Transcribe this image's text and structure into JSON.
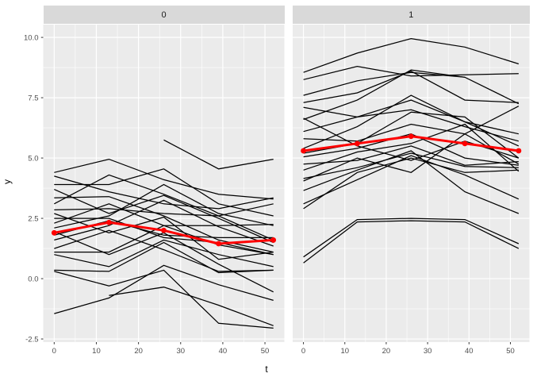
{
  "chart_data": {
    "type": "line",
    "title": "",
    "xlabel": "t",
    "ylabel": "y",
    "x": [
      0,
      13,
      26,
      39,
      52
    ],
    "x_ticks": [
      0,
      10,
      20,
      30,
      40,
      50
    ],
    "x_tick_labels": [
      "0",
      "10",
      "20",
      "30",
      "40",
      "50"
    ],
    "y_ticks": [
      10.0,
      7.5,
      5.0,
      2.5,
      0.0,
      -2.5
    ],
    "y_tick_labels": [
      "10.0",
      "7.5",
      "5.0",
      "2.5",
      "0.0",
      "-2.5"
    ],
    "x_minor_ticks": [
      5,
      15,
      25,
      35,
      45
    ],
    "y_minor_ticks": [
      8.75,
      6.25,
      3.75,
      1.25,
      -1.25
    ],
    "xlim": [
      -2.6,
      54.6
    ],
    "ylim": [
      -2.63,
      10.53
    ],
    "grid": true,
    "legend": "none",
    "facets": [
      {
        "label": "0",
        "mean": [
          1.9,
          2.33,
          2.0,
          1.45,
          1.6
        ],
        "series": [
          [
            4.4,
            4.95,
            4.1,
            3.5,
            3.3
          ],
          [
            4.25,
            3.6,
            3.1,
            2.9,
            3.35
          ],
          [
            3.9,
            3.9,
            4.55,
            3.1,
            2.6
          ],
          [
            3.7,
            2.7,
            3.45,
            2.5,
            1.5
          ],
          [
            3.35,
            3.4,
            2.6,
            1.6,
            1.1
          ],
          [
            3.1,
            4.3,
            3.5,
            2.6,
            3.1
          ],
          [
            2.85,
            2.9,
            2.7,
            2.6,
            1.6
          ],
          [
            2.7,
            1.9,
            2.55,
            0.8,
            1.1
          ],
          [
            2.5,
            2.5,
            1.7,
            1.5,
            1.0
          ],
          [
            2.3,
            3.1,
            2.2,
            2.2,
            2.25
          ],
          [
            2.1,
            2.6,
            3.9,
            2.7,
            2.2
          ],
          [
            1.95,
            1.0,
            1.9,
            0.6,
            -0.55
          ],
          [
            1.8,
            2.4,
            1.8,
            1.7,
            1.7
          ],
          [
            1.6,
            2.2,
            3.25,
            2.15,
            1.35
          ],
          [
            1.25,
            2.0,
            1.2,
            0.3,
            0.35
          ],
          [
            1.1,
            1.1,
            2.2,
            1.4,
            1.0
          ],
          [
            1.0,
            0.5,
            1.6,
            1.0,
            0.5
          ],
          [
            0.35,
            0.3,
            1.5,
            0.25,
            0.35
          ],
          [
            0.3,
            -0.3,
            0.35,
            -1.85,
            -2.05
          ],
          [
            -1.45,
            -0.8,
            0.55,
            -0.25,
            -0.9
          ],
          [
            null,
            -0.7,
            -0.35,
            -1.1,
            -1.95
          ],
          [
            null,
            null,
            5.75,
            4.55,
            4.95
          ]
        ]
      },
      {
        "label": "1",
        "mean": [
          5.3,
          5.6,
          5.9,
          5.6,
          5.3
        ],
        "series": [
          [
            8.55,
            9.35,
            9.95,
            9.6,
            8.9
          ],
          [
            8.25,
            8.8,
            8.4,
            8.45,
            8.5
          ],
          [
            7.6,
            8.2,
            8.55,
            8.35,
            null
          ],
          [
            7.3,
            7.7,
            8.6,
            7.4,
            7.3
          ],
          [
            7.1,
            6.7,
            7.4,
            6.5,
            6.0
          ],
          [
            6.65,
            5.5,
            4.9,
            5.7,
            5.0
          ],
          [
            6.6,
            7.4,
            8.65,
            8.35,
            7.25
          ],
          [
            6.1,
            6.7,
            7.0,
            6.3,
            5.7
          ],
          [
            5.8,
            5.7,
            6.4,
            6.0,
            7.15
          ],
          [
            5.4,
            6.3,
            7.6,
            6.5,
            5.5
          ],
          [
            5.2,
            5.6,
            6.9,
            6.7,
            5.0
          ],
          [
            5.05,
            5.4,
            6.0,
            5.0,
            4.7
          ],
          [
            4.75,
            4.9,
            5.5,
            4.7,
            4.85
          ],
          [
            4.5,
            5.25,
            5.6,
            6.4,
            4.45
          ],
          [
            4.15,
            4.6,
            5.2,
            4.65,
            4.6
          ],
          [
            4.05,
            5.0,
            4.4,
            6.0,
            4.75
          ],
          [
            3.65,
            4.5,
            5.3,
            3.6,
            2.7
          ],
          [
            3.1,
            4.1,
            5.1,
            4.3,
            3.3
          ],
          [
            2.9,
            4.4,
            5.0,
            4.4,
            4.5
          ],
          [
            0.9,
            2.45,
            2.5,
            2.45,
            1.45
          ],
          [
            0.65,
            2.35,
            2.4,
            2.35,
            1.25
          ]
        ]
      }
    ],
    "colors": {
      "panel_bg": "#EBEBEB",
      "strip_bg": "#D9D9D9",
      "grid": "#FFFFFF",
      "trajectory": "#000000",
      "mean_line": "#FF0000",
      "tick_mark": "#333333",
      "tick_text": "#4D4D4D",
      "strip_text": "#1A1A1A"
    }
  }
}
